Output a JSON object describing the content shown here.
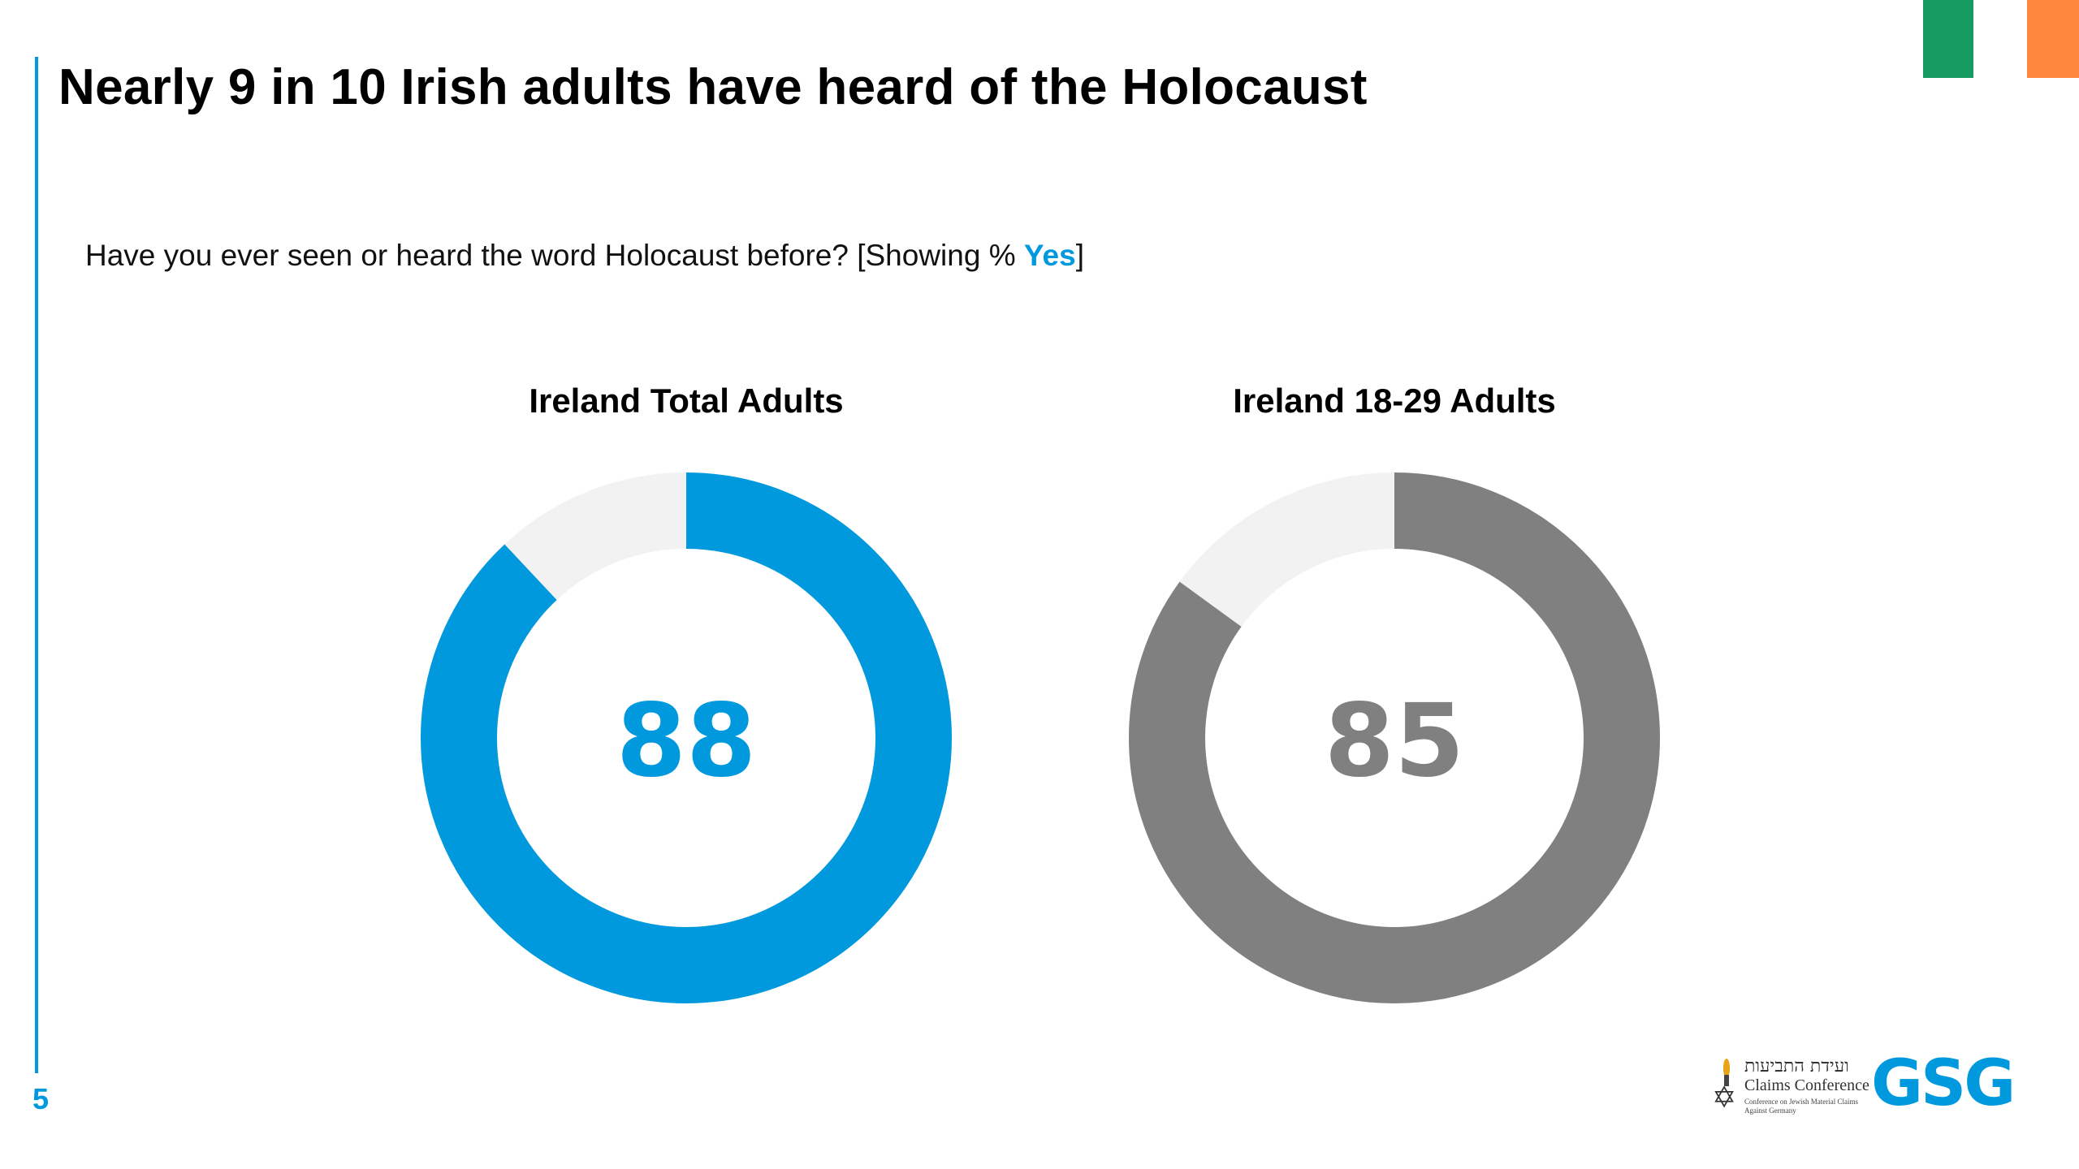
{
  "title": "Nearly 9 in 10 Irish adults have heard of the Holocaust",
  "question": {
    "text": "Have you ever seen or heard the word Holocaust before? [Showing % ",
    "highlight": "Yes",
    "suffix": "]"
  },
  "page_number": "5",
  "logos": {
    "claims_hebrew": "ועידת התביעות",
    "claims_name": "Claims Conference",
    "claims_sub": "Conference on Jewish Material Claims Against Germany",
    "gsg": "GSG",
    "star_icon": "star-of-david-icon",
    "candle_icon": "candle-icon"
  },
  "colors": {
    "accent": "#0099DD",
    "gray": "#808080",
    "remainder": "#F2F2F2",
    "flag_green": "#169B62",
    "flag_orange": "#FF883E"
  },
  "chart_data": [
    {
      "type": "pie",
      "title": "Ireland Total Adults",
      "value": 88,
      "label": "88",
      "remainder": 12,
      "color": "#0099DD"
    },
    {
      "type": "pie",
      "title": "Ireland 18-29 Adults",
      "value": 85,
      "label": "85",
      "remainder": 15,
      "color": "#808080"
    }
  ]
}
